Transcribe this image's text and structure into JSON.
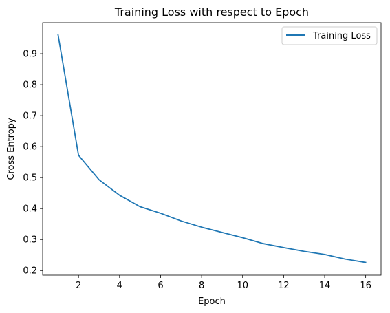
{
  "chart_data": {
    "type": "line",
    "title": "Training Loss with respect to Epoch",
    "xlabel": "Epoch",
    "ylabel": "Cross Entropy",
    "xlim": [
      0.25,
      16.75
    ],
    "ylim": [
      0.185,
      1.0
    ],
    "xticks": [
      2,
      4,
      6,
      8,
      10,
      12,
      14,
      16
    ],
    "yticks": [
      0.2,
      0.3,
      0.4,
      0.5,
      0.6,
      0.7,
      0.8,
      0.9
    ],
    "grid": false,
    "legend_position": "top-right",
    "series": [
      {
        "name": "Training Loss",
        "color": "#1f77b4",
        "x": [
          1,
          2,
          3,
          4,
          5,
          6,
          7,
          8,
          9,
          10,
          11,
          12,
          13,
          14,
          15,
          16
        ],
        "y": [
          0.962,
          0.572,
          0.493,
          0.443,
          0.406,
          0.385,
          0.36,
          0.34,
          0.323,
          0.306,
          0.287,
          0.274,
          0.262,
          0.252,
          0.237,
          0.226
        ]
      }
    ]
  }
}
